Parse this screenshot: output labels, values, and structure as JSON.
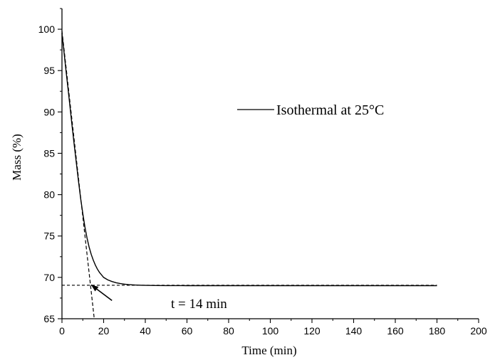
{
  "chart_data": {
    "type": "line",
    "xlabel": "Time (min)",
    "ylabel": "Mass (%)",
    "xlim": [
      0,
      200
    ],
    "ylim": [
      65,
      102.5
    ],
    "x_ticks": [
      0,
      20,
      40,
      60,
      80,
      100,
      120,
      140,
      160,
      180,
      200
    ],
    "y_ticks": [
      65,
      70,
      75,
      80,
      85,
      90,
      95,
      100
    ],
    "grid": false,
    "legend_position": "upper-right",
    "series": [
      {
        "name": "Isothermal at 25°C",
        "style": "solid",
        "x": [
          0,
          1,
          2,
          3,
          4,
          5,
          6,
          7,
          8,
          9,
          10,
          11,
          12,
          13,
          14,
          15,
          16,
          17,
          18,
          19,
          20,
          22,
          24,
          26,
          28,
          30,
          32,
          35,
          38,
          40,
          45,
          50,
          60,
          80,
          100,
          120,
          140,
          160,
          180
        ],
        "y": [
          99.5,
          97.2,
          94.9,
          92.6,
          90.3,
          88.0,
          85.8,
          83.6,
          81.5,
          79.5,
          77.7,
          76.1,
          74.8,
          73.7,
          72.8,
          72.1,
          71.5,
          71.0,
          70.6,
          70.3,
          70.0,
          69.7,
          69.5,
          69.35,
          69.25,
          69.18,
          69.12,
          69.08,
          69.05,
          69.03,
          69.02,
          69.01,
          69.0,
          69.0,
          69.0,
          69.0,
          69.0,
          69.0,
          69.0
        ]
      }
    ],
    "annotations": [
      {
        "type": "tangent-line",
        "style": "dashed",
        "x": [
          0,
          15.5
        ],
        "y": [
          99.8,
          65
        ]
      },
      {
        "type": "baseline",
        "style": "dashed",
        "x": [
          0,
          180
        ],
        "y": [
          69.05,
          69.05
        ]
      },
      {
        "type": "arrow",
        "x_from": 24,
        "y_from": 67.2,
        "x_to": 14,
        "y_to": 69.1
      },
      {
        "type": "text",
        "text": "t = 14 min",
        "x": 26,
        "y": 67.2
      }
    ],
    "legend_label": "Isothermal at 25°C"
  }
}
